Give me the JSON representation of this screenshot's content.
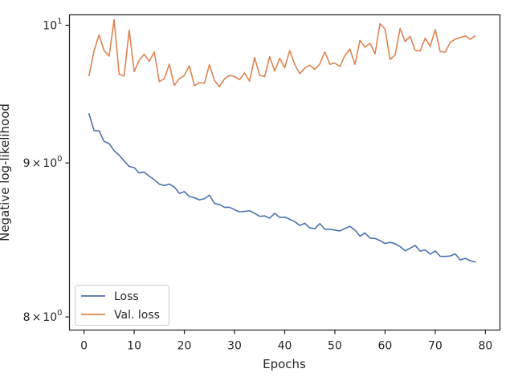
{
  "chart_data": {
    "type": "line",
    "title": "",
    "xlabel": "Epochs",
    "ylabel": "Negative log-likelihood",
    "xlim": [
      -2.9,
      82.9
    ],
    "ylim": [
      7.92,
      10.08
    ],
    "yscale": "log",
    "xticks": [
      0,
      10,
      20,
      30,
      40,
      50,
      60,
      70,
      80
    ],
    "yticks": [
      {
        "value": 8,
        "base": "8",
        "times": "×",
        "exp_base": "10",
        "exp": "0"
      },
      {
        "value": 9,
        "base": "9",
        "times": "×",
        "exp_base": "10",
        "exp": "0"
      },
      {
        "value": 10,
        "base": "",
        "times": "",
        "exp_base": "10",
        "exp": "1"
      }
    ],
    "grid": false,
    "legend_position": "lower-left",
    "x": [
      1,
      2,
      3,
      4,
      5,
      6,
      7,
      8,
      9,
      10,
      11,
      12,
      13,
      14,
      15,
      16,
      17,
      18,
      19,
      20,
      21,
      22,
      23,
      24,
      25,
      26,
      27,
      28,
      29,
      30,
      31,
      32,
      33,
      34,
      35,
      36,
      37,
      38,
      39,
      40,
      41,
      42,
      43,
      44,
      45,
      46,
      47,
      48,
      49,
      50,
      51,
      52,
      53,
      54,
      55,
      56,
      57,
      58,
      59,
      60,
      61,
      62,
      63,
      64,
      65,
      66,
      67,
      68,
      69,
      70,
      71,
      72,
      73,
      74,
      75,
      76,
      77,
      78
    ],
    "series": [
      {
        "name": "Loss",
        "color": "#4c72b0",
        "values": [
          9.345,
          9.226,
          9.224,
          9.149,
          9.135,
          9.085,
          9.054,
          9.014,
          8.976,
          8.968,
          8.931,
          8.938,
          8.909,
          8.886,
          8.856,
          8.846,
          8.856,
          8.836,
          8.793,
          8.805,
          8.772,
          8.764,
          8.749,
          8.758,
          8.781,
          8.726,
          8.718,
          8.7,
          8.7,
          8.684,
          8.669,
          8.673,
          8.677,
          8.66,
          8.64,
          8.643,
          8.628,
          8.66,
          8.633,
          8.635,
          8.621,
          8.605,
          8.58,
          8.594,
          8.564,
          8.559,
          8.592,
          8.555,
          8.555,
          8.549,
          8.544,
          8.56,
          8.574,
          8.55,
          8.51,
          8.531,
          8.497,
          8.495,
          8.481,
          8.462,
          8.47,
          8.461,
          8.442,
          8.415,
          8.432,
          8.45,
          8.413,
          8.421,
          8.394,
          8.414,
          8.38,
          8.379,
          8.382,
          8.395,
          8.356,
          8.367,
          8.351,
          8.343
        ]
      },
      {
        "name": "Val. loss",
        "color": "#dd8452",
        "values": [
          9.622,
          9.807,
          9.926,
          9.808,
          9.767,
          10.042,
          9.633,
          9.62,
          9.963,
          9.653,
          9.736,
          9.781,
          9.727,
          9.798,
          9.578,
          9.6,
          9.707,
          9.55,
          9.599,
          9.624,
          9.694,
          9.547,
          9.572,
          9.566,
          9.704,
          9.586,
          9.541,
          9.599,
          9.624,
          9.614,
          9.593,
          9.642,
          9.581,
          9.756,
          9.625,
          9.614,
          9.762,
          9.656,
          9.75,
          9.68,
          9.808,
          9.704,
          9.636,
          9.678,
          9.699,
          9.668,
          9.709,
          9.798,
          9.706,
          9.715,
          9.689,
          9.771,
          9.82,
          9.705,
          9.885,
          9.834,
          9.863,
          9.783,
          10.013,
          9.97,
          9.741,
          9.775,
          9.975,
          9.877,
          9.916,
          9.811,
          9.805,
          9.902,
          9.84,
          9.967,
          9.8,
          9.797,
          9.871,
          9.895,
          9.906,
          9.918,
          9.893,
          9.92
        ]
      }
    ]
  }
}
